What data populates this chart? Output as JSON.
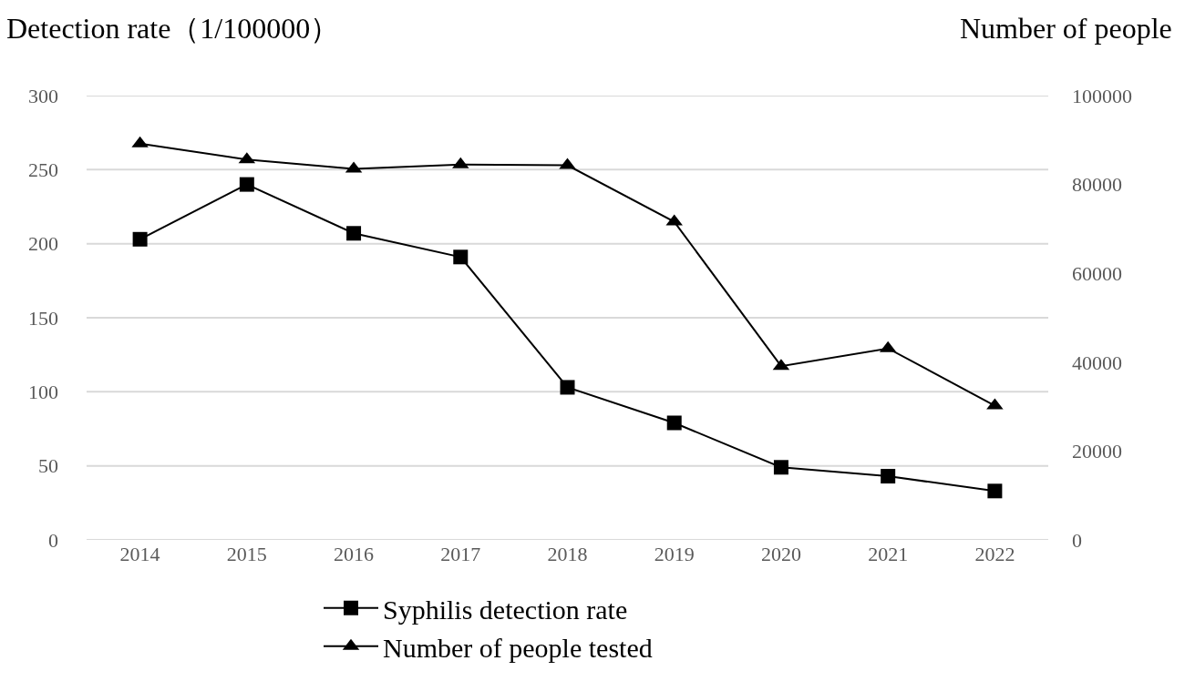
{
  "chart_data": {
    "type": "line",
    "ylabel": "Detection rate（1/100000）",
    "y2label": "Number of people",
    "categories": [
      "2014",
      "2015",
      "2016",
      "2017",
      "2018",
      "2019",
      "2020",
      "2021",
      "2022"
    ],
    "series": [
      {
        "name": "Syphilis detection rate",
        "color": "#000000",
        "marker": "square",
        "values": [
          203,
          240,
          207,
          191,
          103,
          79,
          49,
          43,
          33
        ]
      },
      {
        "name": "Number of people tested",
        "color": "#000000",
        "marker": "triangle",
        "axis": "y2",
        "values": [
          89200,
          85600,
          83500,
          84500,
          84300,
          71600,
          39100,
          43100,
          30200
        ]
      }
    ],
    "ylim": [
      0,
      300
    ],
    "yticks": [
      0,
      50,
      100,
      150,
      200,
      250,
      300
    ],
    "y2lim": [
      0,
      100000
    ],
    "y2ticks": [
      0,
      20000,
      40000,
      60000,
      80000,
      100000
    ],
    "grid": "y",
    "legend": "bottom",
    "line_style": "solid"
  }
}
